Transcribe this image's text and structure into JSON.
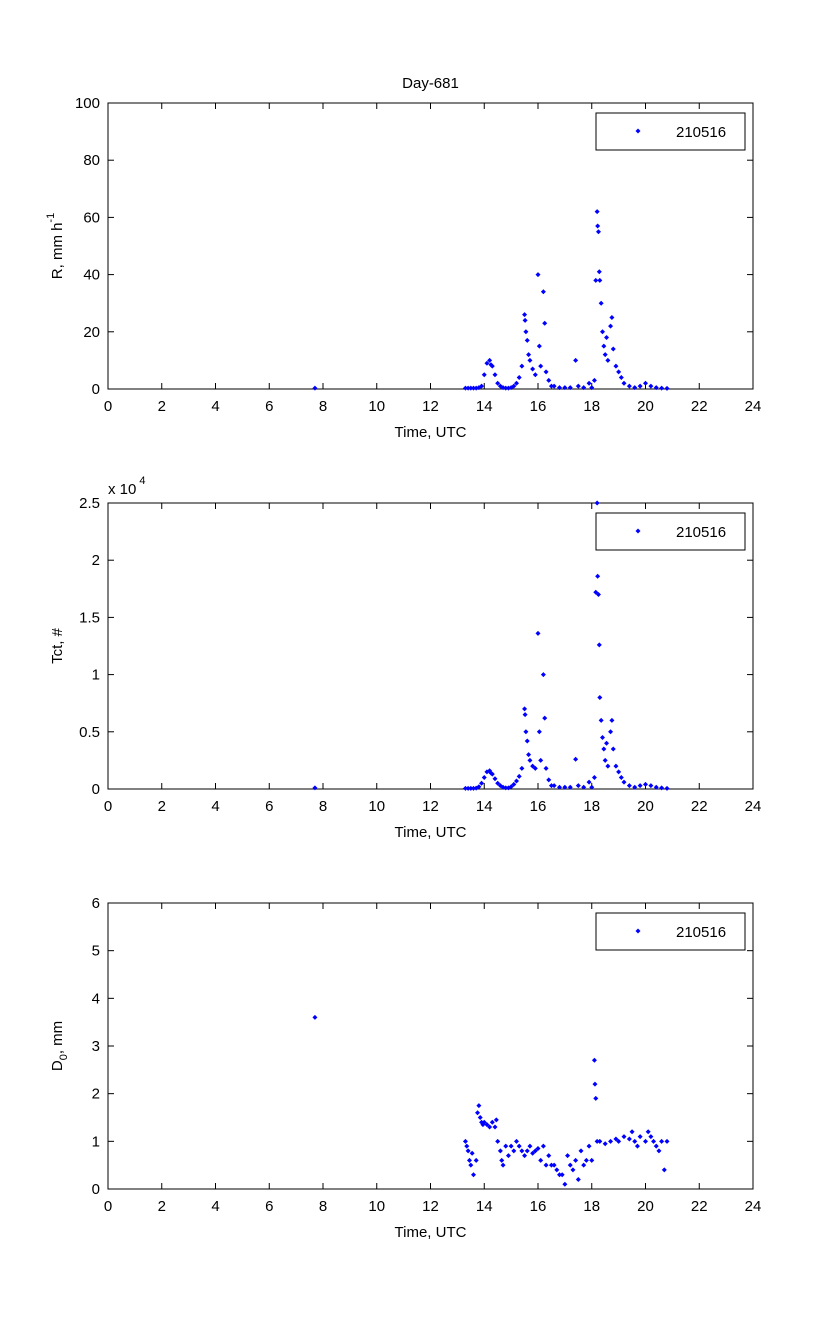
{
  "chart_data": [
    {
      "type": "scatter",
      "title": "Day-681",
      "xlabel": "Time, UTC",
      "ylabel": "R, mm h",
      "ylabel_sup": "-1",
      "ylabel_sub": "",
      "ylabel_tail": "",
      "exponent_label": "",
      "exponent_sup": "",
      "xlim": [
        0,
        24
      ],
      "ylim": [
        0,
        100
      ],
      "xticks": [
        0,
        2,
        4,
        6,
        8,
        10,
        12,
        14,
        16,
        18,
        20,
        22,
        24
      ],
      "yticks": [
        0,
        20,
        40,
        60,
        80,
        100
      ],
      "ytick_labels": [
        "0",
        "20",
        "40",
        "60",
        "80",
        "100"
      ],
      "legend": "210516",
      "legend_position": "top-right",
      "color": "#0000ff",
      "x": [
        7.7,
        13.3,
        13.4,
        13.5,
        13.6,
        13.7,
        13.8,
        13.9,
        14.0,
        14.1,
        14.2,
        14.25,
        14.3,
        14.4,
        14.5,
        14.6,
        14.7,
        14.8,
        14.9,
        15.0,
        15.1,
        15.2,
        15.3,
        15.4,
        15.5,
        15.52,
        15.55,
        15.6,
        15.65,
        15.7,
        15.8,
        15.9,
        16.0,
        16.05,
        16.1,
        16.2,
        16.25,
        16.3,
        16.4,
        16.5,
        16.6,
        16.8,
        17.0,
        17.2,
        17.4,
        17.5,
        17.7,
        17.9,
        18.0,
        18.1,
        18.15,
        18.2,
        18.22,
        18.25,
        18.28,
        18.3,
        18.35,
        18.4,
        18.45,
        18.5,
        18.55,
        18.6,
        18.7,
        18.75,
        18.8,
        18.9,
        19.0,
        19.1,
        19.2,
        19.4,
        19.6,
        19.8,
        20.0,
        20.2,
        20.4,
        20.6,
        20.8
      ],
      "y": [
        0.3,
        0.3,
        0.3,
        0.3,
        0.3,
        0.3,
        0.5,
        1,
        5,
        9,
        10,
        8.5,
        8,
        5,
        2,
        1,
        0.5,
        0.3,
        0.3,
        0.5,
        1,
        2,
        4,
        8,
        26,
        24,
        20,
        17,
        12,
        10,
        7,
        5,
        40,
        15,
        8,
        34,
        23,
        6,
        3,
        1,
        1,
        0.5,
        0.5,
        0.5,
        10,
        1,
        0.5,
        2,
        0.5,
        3,
        38,
        62,
        57,
        55,
        41,
        38,
        30,
        20,
        15,
        12,
        18,
        10,
        22,
        25,
        14,
        8,
        6,
        4,
        2,
        1,
        0.5,
        1,
        2,
        1,
        0.5,
        0.3,
        0.2
      ]
    },
    {
      "type": "scatter",
      "title": "",
      "xlabel": "Time, UTC",
      "ylabel": "Tct, #",
      "ylabel_sup": "",
      "ylabel_sub": "",
      "ylabel_tail": "",
      "exponent_label": "x 10",
      "exponent_sup": "4",
      "xlim": [
        0,
        24
      ],
      "ylim": [
        0,
        25000
      ],
      "xticks": [
        0,
        2,
        4,
        6,
        8,
        10,
        12,
        14,
        16,
        18,
        20,
        22,
        24
      ],
      "yticks": [
        0,
        5000,
        10000,
        15000,
        20000,
        25000
      ],
      "ytick_labels": [
        "0",
        "0.5",
        "1",
        "1.5",
        "2",
        "2.5"
      ],
      "legend": "210516",
      "legend_position": "top-right",
      "color": "#0000ff",
      "x": [
        7.7,
        13.3,
        13.4,
        13.5,
        13.6,
        13.7,
        13.8,
        13.9,
        14.0,
        14.1,
        14.2,
        14.25,
        14.3,
        14.4,
        14.5,
        14.6,
        14.7,
        14.8,
        14.9,
        15.0,
        15.1,
        15.2,
        15.3,
        15.4,
        15.5,
        15.52,
        15.55,
        15.6,
        15.65,
        15.7,
        15.8,
        15.9,
        16.0,
        16.05,
        16.1,
        16.2,
        16.25,
        16.3,
        16.4,
        16.5,
        16.6,
        16.8,
        17.0,
        17.2,
        17.4,
        17.5,
        17.7,
        17.9,
        18.0,
        18.1,
        18.15,
        18.2,
        18.22,
        18.25,
        18.28,
        18.3,
        18.35,
        18.4,
        18.45,
        18.5,
        18.55,
        18.6,
        18.7,
        18.75,
        18.8,
        18.9,
        19.0,
        19.1,
        19.2,
        19.4,
        19.6,
        19.8,
        20.0,
        20.2,
        20.4,
        20.6,
        20.8
      ],
      "y": [
        100,
        50,
        50,
        50,
        50,
        80,
        200,
        500,
        1000,
        1500,
        1600,
        1400,
        1300,
        900,
        500,
        300,
        150,
        100,
        100,
        200,
        400,
        700,
        1100,
        1800,
        7000,
        6500,
        5000,
        4200,
        3000,
        2500,
        2000,
        1800,
        13600,
        5000,
        2500,
        10000,
        6200,
        1800,
        800,
        300,
        300,
        150,
        150,
        150,
        2600,
        300,
        150,
        600,
        150,
        1000,
        17200,
        25000,
        18600,
        17000,
        12600,
        8000,
        6000,
        4500,
        3500,
        2500,
        4000,
        2000,
        5000,
        6000,
        3500,
        2000,
        1500,
        1000,
        600,
        300,
        150,
        300,
        400,
        300,
        150,
        100,
        50
      ]
    },
    {
      "type": "scatter",
      "title": "",
      "xlabel": "Time, UTC",
      "ylabel": "D",
      "ylabel_sup": "",
      "ylabel_sub": "0",
      "ylabel_tail": ", mm",
      "exponent_label": "",
      "exponent_sup": "",
      "xlim": [
        0,
        24
      ],
      "ylim": [
        0,
        6
      ],
      "xticks": [
        0,
        2,
        4,
        6,
        8,
        10,
        12,
        14,
        16,
        18,
        20,
        22,
        24
      ],
      "yticks": [
        0,
        1,
        2,
        3,
        4,
        5,
        6
      ],
      "ytick_labels": [
        "0",
        "1",
        "2",
        "3",
        "4",
        "5",
        "6"
      ],
      "legend": "210516",
      "legend_position": "top-right",
      "color": "#0000ff",
      "x": [
        7.7,
        13.3,
        13.35,
        13.4,
        13.45,
        13.5,
        13.55,
        13.6,
        13.7,
        13.75,
        13.8,
        13.85,
        13.9,
        13.95,
        14.0,
        14.1,
        14.2,
        14.3,
        14.4,
        14.45,
        14.5,
        14.6,
        14.65,
        14.7,
        14.8,
        14.9,
        15.0,
        15.1,
        15.2,
        15.3,
        15.4,
        15.5,
        15.6,
        15.7,
        15.8,
        15.9,
        16.0,
        16.1,
        16.2,
        16.3,
        16.4,
        16.5,
        16.6,
        16.7,
        16.8,
        16.9,
        17.0,
        17.1,
        17.2,
        17.3,
        17.4,
        17.5,
        17.6,
        17.7,
        17.8,
        17.9,
        18.0,
        18.1,
        18.12,
        18.15,
        18.2,
        18.3,
        18.5,
        18.7,
        18.9,
        19.0,
        19.2,
        19.4,
        19.5,
        19.6,
        19.7,
        19.8,
        20.0,
        20.1,
        20.2,
        20.3,
        20.4,
        20.5,
        20.6,
        20.7,
        20.8
      ],
      "y": [
        3.6,
        1.0,
        0.9,
        0.8,
        0.6,
        0.5,
        0.75,
        0.3,
        0.6,
        1.6,
        1.75,
        1.5,
        1.4,
        1.35,
        1.4,
        1.35,
        1.3,
        1.4,
        1.3,
        1.45,
        1.0,
        0.8,
        0.6,
        0.5,
        0.9,
        0.7,
        0.9,
        0.8,
        1.0,
        0.9,
        0.8,
        0.7,
        0.8,
        0.9,
        0.75,
        0.8,
        0.85,
        0.6,
        0.9,
        0.5,
        0.7,
        0.5,
        0.5,
        0.4,
        0.3,
        0.3,
        0.1,
        0.7,
        0.5,
        0.4,
        0.6,
        0.2,
        0.8,
        0.5,
        0.6,
        0.9,
        0.6,
        2.7,
        2.2,
        1.9,
        1.0,
        1.0,
        0.95,
        1.0,
        1.05,
        1.0,
        1.1,
        1.05,
        1.2,
        1.0,
        0.9,
        1.1,
        1.0,
        1.2,
        1.1,
        1.0,
        0.9,
        0.8,
        1.0,
        0.4,
        1.0
      ]
    }
  ]
}
